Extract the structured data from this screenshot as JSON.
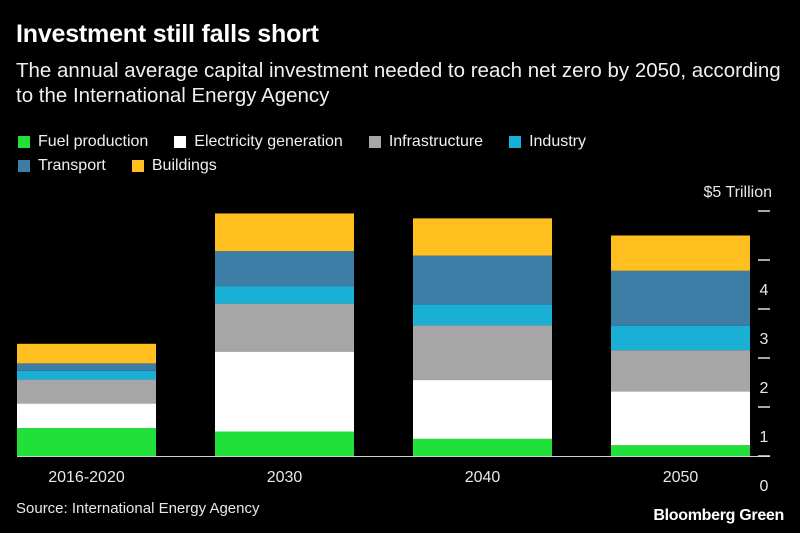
{
  "title": "Investment still falls short",
  "subtitle": "The annual average capital investment needed to reach net zero by 2050, according to the International Energy Agency",
  "source": "Source: International Energy Agency",
  "brand": "Bloomberg Green",
  "chart_data": {
    "type": "bar",
    "stacked": true,
    "categories": [
      "2016-2020",
      "2030",
      "2040",
      "2050"
    ],
    "ylim": [
      0,
      5
    ],
    "yticks": [
      0,
      1,
      2,
      3,
      4,
      5
    ],
    "ytick_labels": [
      "0",
      "1",
      "2",
      "3",
      "4",
      "$5 Trillion"
    ],
    "series": [
      {
        "name": "Fuel production",
        "color": "#22e03a",
        "values": [
          0.57,
          0.5,
          0.35,
          0.22
        ]
      },
      {
        "name": "Electricity generation",
        "color": "#ffffff",
        "values": [
          0.5,
          1.63,
          1.2,
          1.1
        ]
      },
      {
        "name": "Infrastructure",
        "color": "#a6a6a6",
        "values": [
          0.49,
          0.98,
          1.12,
          0.84
        ]
      },
      {
        "name": "Industry",
        "color": "#1ab0d6",
        "values": [
          0.18,
          0.35,
          0.42,
          0.5
        ]
      },
      {
        "name": "Transport",
        "color": "#3d7ea6",
        "values": [
          0.15,
          0.72,
          1.0,
          1.12
        ]
      },
      {
        "name": "Buildings",
        "color": "#ffbf1f",
        "values": [
          0.4,
          0.77,
          0.76,
          0.72
        ]
      }
    ],
    "legend_position": "top-left",
    "grid": false,
    "y_axis_side": "right"
  }
}
